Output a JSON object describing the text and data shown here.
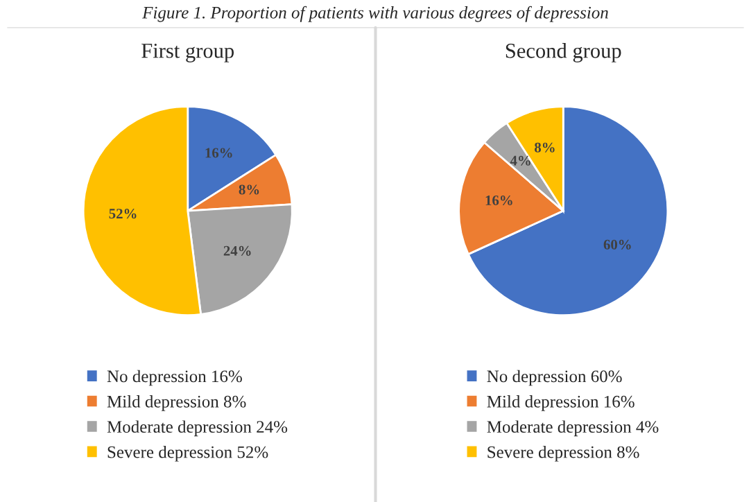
{
  "chart_data": [
    {
      "type": "pie",
      "title": "First group",
      "annotations": [
        "Figure 1. Proportion of patients with various degrees of depression"
      ],
      "categories": [
        "No depression 16%",
        "Mild depression 8%",
        "Moderate depression 24%",
        "Severe depression 52%"
      ],
      "values": [
        16,
        8,
        24,
        52
      ],
      "colors": [
        "#4472c4",
        "#ed7d31",
        "#a5a5a5",
        "#ffc000"
      ],
      "value_labels": [
        "16%",
        "8%",
        "24%",
        "52%"
      ],
      "legend": "bottom"
    },
    {
      "type": "pie",
      "title": "Second group",
      "categories": [
        "No depression 60%",
        "Mild depression 16%",
        "Moderate depression 4%",
        "Severe depression 8%"
      ],
      "values": [
        60,
        16,
        4,
        8
      ],
      "colors": [
        "#4472c4",
        "#ed7d31",
        "#a5a5a5",
        "#ffc000"
      ],
      "value_labels": [
        "60%",
        "16%",
        "4%",
        "8%"
      ],
      "legend": "bottom"
    }
  ]
}
